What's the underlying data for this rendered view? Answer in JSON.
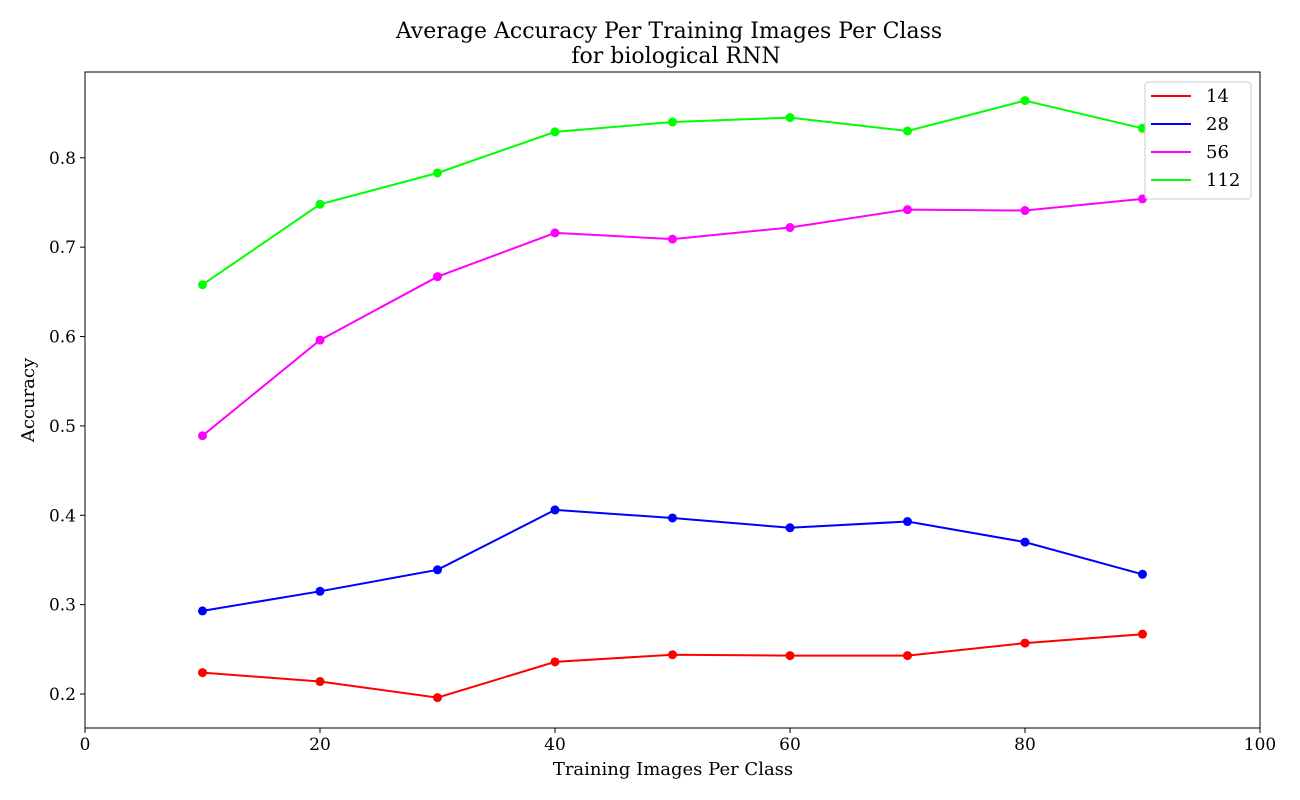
{
  "chart_data": {
    "type": "line",
    "title": "Average Accuracy Per Training Images Per Class",
    "subtitle": "for biological RNN",
    "xlabel": "Training Images Per Class",
    "ylabel": "Accuracy",
    "xlim": [
      0,
      100
    ],
    "ylim": [
      0.162,
      0.896
    ],
    "xticks": [
      0,
      20,
      40,
      60,
      80,
      100
    ],
    "yticks": [
      0.2,
      0.3,
      0.4,
      0.5,
      0.6,
      0.7,
      0.8
    ],
    "grid": false,
    "legend_position": "top-right",
    "x": [
      10,
      20,
      30,
      40,
      50,
      60,
      70,
      80,
      90
    ],
    "series": [
      {
        "name": "14",
        "color": "#ff0000",
        "values": [
          0.224,
          0.214,
          0.196,
          0.236,
          0.244,
          0.243,
          0.243,
          0.257,
          0.267
        ]
      },
      {
        "name": "28",
        "color": "#0000ff",
        "values": [
          0.293,
          0.315,
          0.339,
          0.406,
          0.397,
          0.386,
          0.393,
          0.37,
          0.334
        ]
      },
      {
        "name": "56",
        "color": "#ff00ff",
        "values": [
          0.489,
          0.596,
          0.667,
          0.716,
          0.709,
          0.722,
          0.742,
          0.741,
          0.754
        ]
      },
      {
        "name": "112",
        "color": "#00ff00",
        "values": [
          0.658,
          0.748,
          0.783,
          0.829,
          0.84,
          0.845,
          0.83,
          0.864,
          0.833
        ]
      }
    ]
  }
}
